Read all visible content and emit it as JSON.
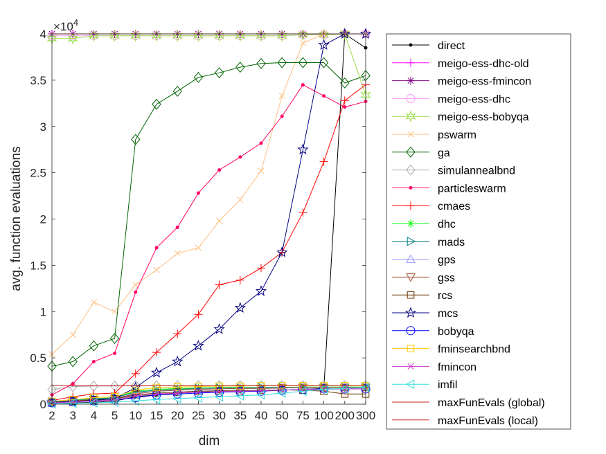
{
  "chart_data": {
    "type": "line",
    "xlabel": "dim",
    "ylabel": "avg. function evaluations",
    "y_exponent_label": "×10",
    "y_exponent_power": "4",
    "categories": [
      "2",
      "3",
      "4",
      "5",
      "10",
      "15",
      "20",
      "25",
      "30",
      "35",
      "40",
      "50",
      "75",
      "100",
      "200",
      "300"
    ],
    "ylim": [
      0,
      40000
    ],
    "yticks": [
      0,
      5000,
      10000,
      15000,
      20000,
      25000,
      30000,
      35000,
      40000
    ],
    "ytick_labels": [
      "0",
      "0.5",
      "1",
      "1.5",
      "2",
      "2.5",
      "3",
      "3.5",
      "4"
    ],
    "legend_position": "right-outside",
    "series": [
      {
        "name": "direct",
        "color": "#000000",
        "marker": "dot",
        "values": [
          60,
          130,
          200,
          340,
          800,
          1000,
          1200,
          1300,
          1350,
          1400,
          1450,
          1500,
          1600,
          1700,
          40000,
          38500
        ]
      },
      {
        "name": "meigo-ess-dhc-old",
        "color": "#ff00ff",
        "marker": "plus",
        "values": [
          40000,
          40000,
          40000,
          40000,
          40000,
          40000,
          40000,
          40000,
          40000,
          40000,
          40000,
          40000,
          40000,
          40000,
          40000,
          40000
        ]
      },
      {
        "name": "meigo-ess-fmincon",
        "color": "#800080",
        "marker": "asterisk",
        "values": [
          40000,
          40000,
          40000,
          40000,
          40000,
          40000,
          40000,
          40000,
          40000,
          40000,
          40000,
          40000,
          40000,
          40000,
          40000,
          40000
        ]
      },
      {
        "name": "meigo-ess-dhc",
        "color": "#ff99ff",
        "marker": "circle",
        "values": [
          39800,
          39800,
          39800,
          39800,
          39800,
          39800,
          39800,
          39800,
          39800,
          39800,
          39800,
          39800,
          39900,
          39900,
          40000,
          40000
        ]
      },
      {
        "name": "meigo-ess-bobyqa",
        "color": "#99dd44",
        "marker": "hexagram",
        "values": [
          39500,
          39500,
          39800,
          39800,
          39800,
          39800,
          39800,
          39800,
          39800,
          39800,
          39800,
          39800,
          39900,
          39900,
          40000,
          33400
        ]
      },
      {
        "name": "pswarm",
        "color": "#ffc080",
        "marker": "x",
        "values": [
          5400,
          7500,
          11000,
          10000,
          12900,
          14500,
          16300,
          16900,
          19800,
          22100,
          25200,
          33300,
          39000,
          40000,
          40000,
          40000
        ]
      },
      {
        "name": "ga",
        "color": "#006400",
        "marker": "diamond",
        "values": [
          4100,
          4600,
          6300,
          7100,
          28600,
          32400,
          33800,
          35300,
          35800,
          36400,
          36800,
          36900,
          36900,
          36900,
          34700,
          35500
        ]
      },
      {
        "name": "simulannealbnd",
        "color": "#aaaaaa",
        "marker": "diamond",
        "values": [
          1600,
          1900,
          1950,
          1950,
          2000,
          2000,
          2000,
          2000,
          2000,
          2000,
          2000,
          2000,
          2000,
          2000,
          2000,
          2000
        ]
      },
      {
        "name": "particleswarm",
        "color": "#ff0066",
        "marker": "dot",
        "values": [
          1000,
          2200,
          4600,
          5500,
          12100,
          16900,
          19100,
          22800,
          25300,
          26700,
          28200,
          31100,
          34500,
          33300,
          32100,
          32700
        ]
      },
      {
        "name": "cmaes",
        "color": "#ff0000",
        "marker": "plus",
        "values": [
          400,
          800,
          1100,
          1200,
          3300,
          5600,
          7600,
          9700,
          12900,
          13400,
          14700,
          16400,
          20700,
          26200,
          32800,
          34500
        ]
      },
      {
        "name": "dhc",
        "color": "#00ff00",
        "marker": "asterisk",
        "values": [
          200,
          400,
          600,
          700,
          1400,
          1600,
          1700,
          1750,
          1800,
          1800,
          1800,
          1800,
          1850,
          1850,
          1850,
          1850
        ]
      },
      {
        "name": "mads",
        "color": "#008080",
        "marker": "triangle-right",
        "values": [
          250,
          400,
          550,
          700,
          1300,
          1500,
          1600,
          1700,
          1750,
          1750,
          1800,
          1800,
          1800,
          1800,
          1800,
          1800
        ]
      },
      {
        "name": "gps",
        "color": "#9999ff",
        "marker": "triangle-up",
        "values": [
          200,
          350,
          500,
          600,
          1200,
          1400,
          1500,
          1600,
          1650,
          1700,
          1700,
          1750,
          1800,
          1800,
          1800,
          1800
        ]
      },
      {
        "name": "gss",
        "color": "#a0522d",
        "marker": "triangle-down",
        "values": [
          200,
          350,
          500,
          600,
          1100,
          1400,
          1500,
          1600,
          1650,
          1700,
          1700,
          1750,
          1800,
          1800,
          1800,
          1800
        ]
      },
      {
        "name": "rcs",
        "color": "#663300",
        "marker": "square",
        "values": [
          150,
          300,
          450,
          550,
          1000,
          1200,
          1300,
          1400,
          1450,
          1450,
          1500,
          1550,
          1500,
          1400,
          1100,
          1100
        ]
      },
      {
        "name": "mcs",
        "color": "#000080",
        "marker": "pentagram",
        "values": [
          200,
          300,
          400,
          600,
          1800,
          3400,
          4600,
          6300,
          8100,
          10400,
          12200,
          16400,
          27500,
          38800,
          40000,
          40000
        ]
      },
      {
        "name": "bobyqa",
        "color": "#0000ff",
        "marker": "circle",
        "values": [
          150,
          250,
          350,
          450,
          700,
          1000,
          1100,
          1200,
          1300,
          1350,
          1400,
          1500,
          1600,
          1650,
          1650,
          1650
        ]
      },
      {
        "name": "fminsearchbnd",
        "color": "#ffcc00",
        "marker": "square",
        "values": [
          300,
          500,
          700,
          800,
          1500,
          1800,
          1850,
          1900,
          1950,
          1950,
          2000,
          2000,
          2000,
          2000,
          2000,
          2000
        ]
      },
      {
        "name": "fmincon",
        "color": "#cc33cc",
        "marker": "x",
        "values": [
          150,
          250,
          350,
          450,
          900,
          1100,
          1200,
          1300,
          1350,
          1400,
          1450,
          1500,
          1600,
          1600,
          1650,
          1650
        ]
      },
      {
        "name": "imfil",
        "color": "#33dddd",
        "marker": "triangle-left",
        "values": [
          50,
          100,
          150,
          200,
          350,
          500,
          600,
          700,
          800,
          900,
          1000,
          1200,
          1400,
          1600,
          1700,
          1800
        ]
      },
      {
        "name": "maxFunEvals (global)",
        "color": "#cc2222",
        "marker": "none",
        "values": [
          40000,
          40000,
          40000,
          40000,
          40000,
          40000,
          40000,
          40000,
          40000,
          40000,
          40000,
          40000,
          40000,
          40000,
          40000,
          40000
        ]
      },
      {
        "name": "maxFunEvals (local)",
        "color": "#cc2222",
        "marker": "none",
        "values": [
          2000,
          2000,
          2000,
          2000,
          2000,
          2000,
          2000,
          2000,
          2000,
          2000,
          2000,
          2000,
          2000,
          2000,
          2000,
          2000
        ]
      }
    ]
  }
}
